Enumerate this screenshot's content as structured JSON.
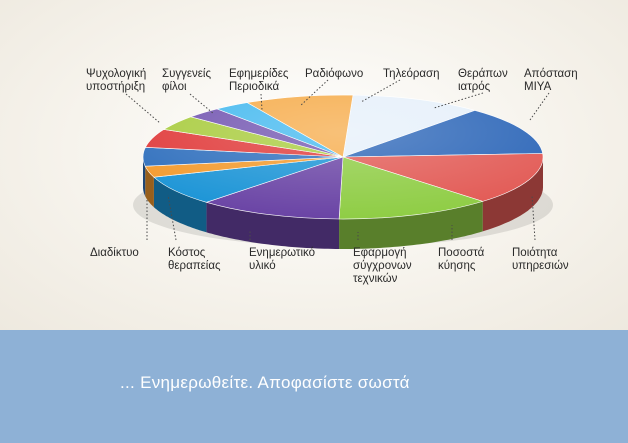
{
  "chart_data": {
    "type": "pie",
    "title": "",
    "slices": [
      {
        "label": "Απόσταση ΜΙΥΑ",
        "value": 11,
        "color": "#e6f0fa"
      },
      {
        "label": "Ποιότητα υπηρεσιών",
        "value": 13,
        "color": "#2c66b8"
      },
      {
        "label": "Ποσοστά κύησης",
        "value": 14,
        "color": "#e25a55"
      },
      {
        "label": "Εφαρμογή σύγχρονων τεχνικών",
        "value": 13,
        "color": "#8fcd45"
      },
      {
        "label": "Ενημερωτικό υλικό",
        "value": 12,
        "color": "#6a44a5"
      },
      {
        "label": "Κόστος θεραπείας",
        "value": 8,
        "color": "#1b94d6"
      },
      {
        "label": "Διαδίκτυο",
        "value": 3,
        "color": "#f39a2d"
      },
      {
        "label": "Ψυχολογική υποστήριξη",
        "value": 5,
        "color": "#2f6fbd"
      },
      {
        "label": "Συγγενείς φίλοι",
        "value": 5,
        "color": "#e03a3a"
      },
      {
        "label": "Εφημερίδες Περιοδικά",
        "value": 4,
        "color": "#a9cc3f"
      },
      {
        "label": "Ραδιόφωνο",
        "value": 3,
        "color": "#7356b1"
      },
      {
        "label": "Τηλεόραση",
        "value": 3,
        "color": "#45b9ef"
      },
      {
        "label": "Θεράπων ιατρός",
        "value": 9,
        "color": "#f6ac4b"
      }
    ]
  },
  "labels": {
    "psych": "Ψυχολογική\nυποστήριξη",
    "family": "Συγγενείς\nφίλοι",
    "press": "Εφημερίδες\nΠεριοδικά",
    "radio": "Ραδιόφωνο",
    "tv": "Τηλεόραση",
    "doctor": "Θεράπων\nιατρός",
    "distance": "Απόσταση\nΜΙΥΑ",
    "internet": "Διαδίκτυο",
    "cost": "Κόστος\nθεραπείας",
    "material": "Ενημερωτικό\nυλικό",
    "techniques": "Εφαρμογή\nσύγχρονων\nτεχνικών",
    "pregnancy": "Ποσοστά\nκύησης",
    "quality": "Ποιότητα\nυπηρεσιών"
  },
  "tagline": "... Ενημερωθείτε. Αποφασίστε σωστά"
}
